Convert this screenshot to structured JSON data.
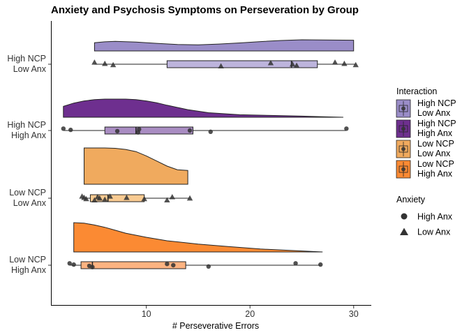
{
  "chart_data": {
    "type": "raincloud",
    "title": "Anxiety and Psychosis Symptoms on Perseveration by Group",
    "xlabel": "# Perseverative Errors",
    "ylabel": "",
    "xlim": [
      0.8,
      31.7
    ],
    "x_ticks": [
      10,
      20,
      30
    ],
    "grid": false,
    "groups": [
      {
        "key": "high_ncp_low_anx",
        "label_lines": [
          "High NCP",
          "Low Anx"
        ],
        "cloud_color": "#9A8DC8",
        "box_color": "#BDB4DC",
        "density": [
          [
            5,
            0.74
          ],
          [
            6,
            0.82
          ],
          [
            7,
            0.86
          ],
          [
            9,
            0.8
          ],
          [
            11,
            0.68
          ],
          [
            13,
            0.58
          ],
          [
            15,
            0.55
          ],
          [
            17,
            0.62
          ],
          [
            19,
            0.72
          ],
          [
            21,
            0.84
          ],
          [
            23,
            0.94
          ],
          [
            25,
            1.0
          ],
          [
            27,
            0.99
          ],
          [
            29,
            0.97
          ],
          [
            30,
            0.96
          ]
        ],
        "box": {
          "whisker_low": 5,
          "q1": 12,
          "median": 24,
          "q3": 26.5,
          "whisker_high": 30.2
        },
        "points": [
          {
            "x": 5.0,
            "anxiety": "Low Anx"
          },
          {
            "x": 6.0,
            "anxiety": "Low Anx"
          },
          {
            "x": 6.8,
            "anxiety": "Low Anx"
          },
          {
            "x": 17.2,
            "anxiety": "Low Anx"
          },
          {
            "x": 22.0,
            "anxiety": "Low Anx"
          },
          {
            "x": 24.1,
            "anxiety": "Low Anx"
          },
          {
            "x": 24.5,
            "anxiety": "Low Anx"
          },
          {
            "x": 28.2,
            "anxiety": "Low Anx"
          },
          {
            "x": 29.1,
            "anxiety": "Low Anx"
          },
          {
            "x": 30.2,
            "anxiety": "Low Anx"
          }
        ]
      },
      {
        "key": "high_ncp_high_anx",
        "label_lines": [
          "High NCP",
          "High Anx"
        ],
        "cloud_color": "#6E2F8F",
        "box_color": "#A98DC2",
        "density": [
          [
            2,
            0.6
          ],
          [
            3,
            0.78
          ],
          [
            4,
            0.9
          ],
          [
            5,
            0.97
          ],
          [
            6,
            1.0
          ],
          [
            7,
            1.0
          ],
          [
            8,
            1.0
          ],
          [
            9,
            0.97
          ],
          [
            10,
            0.9
          ],
          [
            11,
            0.8
          ],
          [
            12,
            0.66
          ],
          [
            14,
            0.42
          ],
          [
            16,
            0.25
          ],
          [
            19,
            0.14
          ],
          [
            22,
            0.1
          ],
          [
            25,
            0.06
          ],
          [
            27,
            0.03
          ],
          [
            29,
            0.0
          ]
        ],
        "box": {
          "whisker_low": 2,
          "q1": 6,
          "median": 9,
          "q3": 14.5,
          "whisker_high": 29.3
        },
        "points": [
          {
            "x": 2.0,
            "anxiety": "High Anx"
          },
          {
            "x": 2.7,
            "anxiety": "High Anx"
          },
          {
            "x": 7.2,
            "anxiety": "High Anx"
          },
          {
            "x": 9.2,
            "anxiety": "High Anx"
          },
          {
            "x": 9.3,
            "anxiety": "High Anx"
          },
          {
            "x": 14.2,
            "anxiety": "High Anx"
          },
          {
            "x": 16.2,
            "anxiety": "High Anx"
          },
          {
            "x": 29.3,
            "anxiety": "High Anx"
          }
        ]
      },
      {
        "key": "low_ncp_low_anx",
        "label_lines": [
          "Low NCP",
          "Low Anx"
        ],
        "cloud_color": "#F0AA5E",
        "box_color": "#F9CB92",
        "density": [
          [
            4,
            1.0
          ],
          [
            5,
            1.0
          ],
          [
            6,
            1.0
          ],
          [
            7,
            0.99
          ],
          [
            8,
            0.96
          ],
          [
            9,
            0.9
          ],
          [
            10,
            0.78
          ],
          [
            11,
            0.64
          ],
          [
            12,
            0.5
          ],
          [
            13,
            0.4
          ],
          [
            14,
            0.38
          ]
        ],
        "box": {
          "whisker_low": 3.8,
          "q1": 4.6,
          "median": 6.3,
          "q3": 9.8,
          "whisker_high": 14.2
        },
        "points": [
          {
            "x": 3.8,
            "anxiety": "Low Anx"
          },
          {
            "x": 4.0,
            "anxiety": "Low Anx"
          },
          {
            "x": 4.2,
            "anxiety": "Low Anx"
          },
          {
            "x": 5.0,
            "anxiety": "Low Anx"
          },
          {
            "x": 5.3,
            "anxiety": "Low Anx"
          },
          {
            "x": 5.5,
            "anxiety": "Low Anx"
          },
          {
            "x": 6.0,
            "anxiety": "Low Anx"
          },
          {
            "x": 6.5,
            "anxiety": "Low Anx"
          },
          {
            "x": 8.1,
            "anxiety": "Low Anx"
          },
          {
            "x": 9.8,
            "anxiety": "Low Anx"
          },
          {
            "x": 12.0,
            "anxiety": "Low Anx"
          },
          {
            "x": 12.5,
            "anxiety": "Low Anx"
          },
          {
            "x": 14.2,
            "anxiety": "Low Anx"
          }
        ]
      },
      {
        "key": "low_ncp_high_anx",
        "label_lines": [
          "Low NCP",
          "High Anx"
        ],
        "cloud_color": "#FB8A33",
        "box_color": "#FDB381",
        "density": [
          [
            3,
            1.0
          ],
          [
            4,
            0.98
          ],
          [
            5,
            0.92
          ],
          [
            6,
            0.84
          ],
          [
            7,
            0.74
          ],
          [
            8,
            0.64
          ],
          [
            10,
            0.5
          ],
          [
            12,
            0.38
          ],
          [
            15,
            0.27
          ],
          [
            18,
            0.18
          ],
          [
            21,
            0.1
          ],
          [
            24,
            0.05
          ],
          [
            27,
            0.0
          ]
        ],
        "box": {
          "whisker_low": 2.6,
          "q1": 3.7,
          "median": 4.8,
          "q3": 13.8,
          "whisker_high": 26.8
        },
        "points": [
          {
            "x": 2.6,
            "anxiety": "High Anx"
          },
          {
            "x": 3.0,
            "anxiety": "High Anx"
          },
          {
            "x": 4.5,
            "anxiety": "High Anx"
          },
          {
            "x": 4.8,
            "anxiety": "High Anx"
          },
          {
            "x": 12.0,
            "anxiety": "High Anx"
          },
          {
            "x": 12.6,
            "anxiety": "High Anx"
          },
          {
            "x": 16.0,
            "anxiety": "High Anx"
          },
          {
            "x": 24.4,
            "anxiety": "High Anx"
          },
          {
            "x": 26.8,
            "anxiety": "High Anx"
          }
        ]
      }
    ],
    "legend": {
      "placement": "right",
      "interaction_title": "Interaction",
      "interaction_items": [
        {
          "lines": [
            "High NCP",
            "Low Anx"
          ],
          "color": "#9A8DC8"
        },
        {
          "lines": [
            "High NCP",
            "High Anx"
          ],
          "color": "#6E2F8F"
        },
        {
          "lines": [
            "Low NCP",
            "Low Anx"
          ],
          "color": "#F0AA5E"
        },
        {
          "lines": [
            "Low NCP",
            "High Anx"
          ],
          "color": "#FB8A33"
        }
      ],
      "anxiety_title": "Anxiety",
      "anxiety_items": [
        {
          "label": "High Anx",
          "shape": "circle"
        },
        {
          "label": "Low Anx",
          "shape": "triangle"
        }
      ]
    },
    "colors": {
      "point": "#333333",
      "axis": "#000000"
    }
  }
}
